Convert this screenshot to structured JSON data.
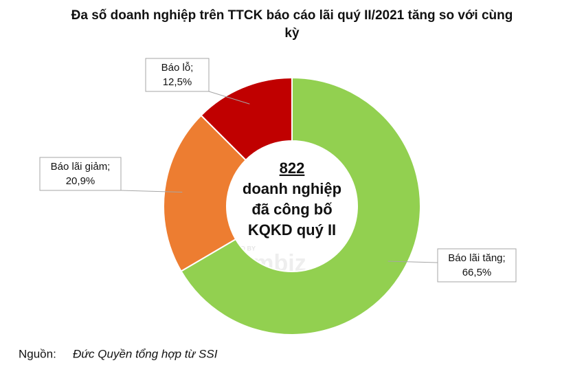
{
  "chart_data": {
    "type": "pie",
    "donut": true,
    "title": "Đa số doanh nghiệp trên TTCK báo cáo lãi quý II/2021 tăng so với cùng kỳ",
    "categories": [
      "Báo lãi tăng;",
      "Báo lãi giảm;",
      "Báo lỗ;"
    ],
    "values": [
      66.5,
      20.9,
      12.5
    ],
    "value_labels": [
      "66,5%",
      "20,9%",
      "12,5%"
    ],
    "colors": [
      "#92d050",
      "#ed7d31",
      "#c00000"
    ],
    "center_text": [
      "822",
      "doanh nghiệp",
      "đã công bố",
      "KQKD quý II"
    ],
    "watermark": [
      "DESIGNED BY",
      "vietnambiz"
    ],
    "source_label": "Nguồn:",
    "source": "Đức Quyền tổng hợp từ SSI"
  }
}
